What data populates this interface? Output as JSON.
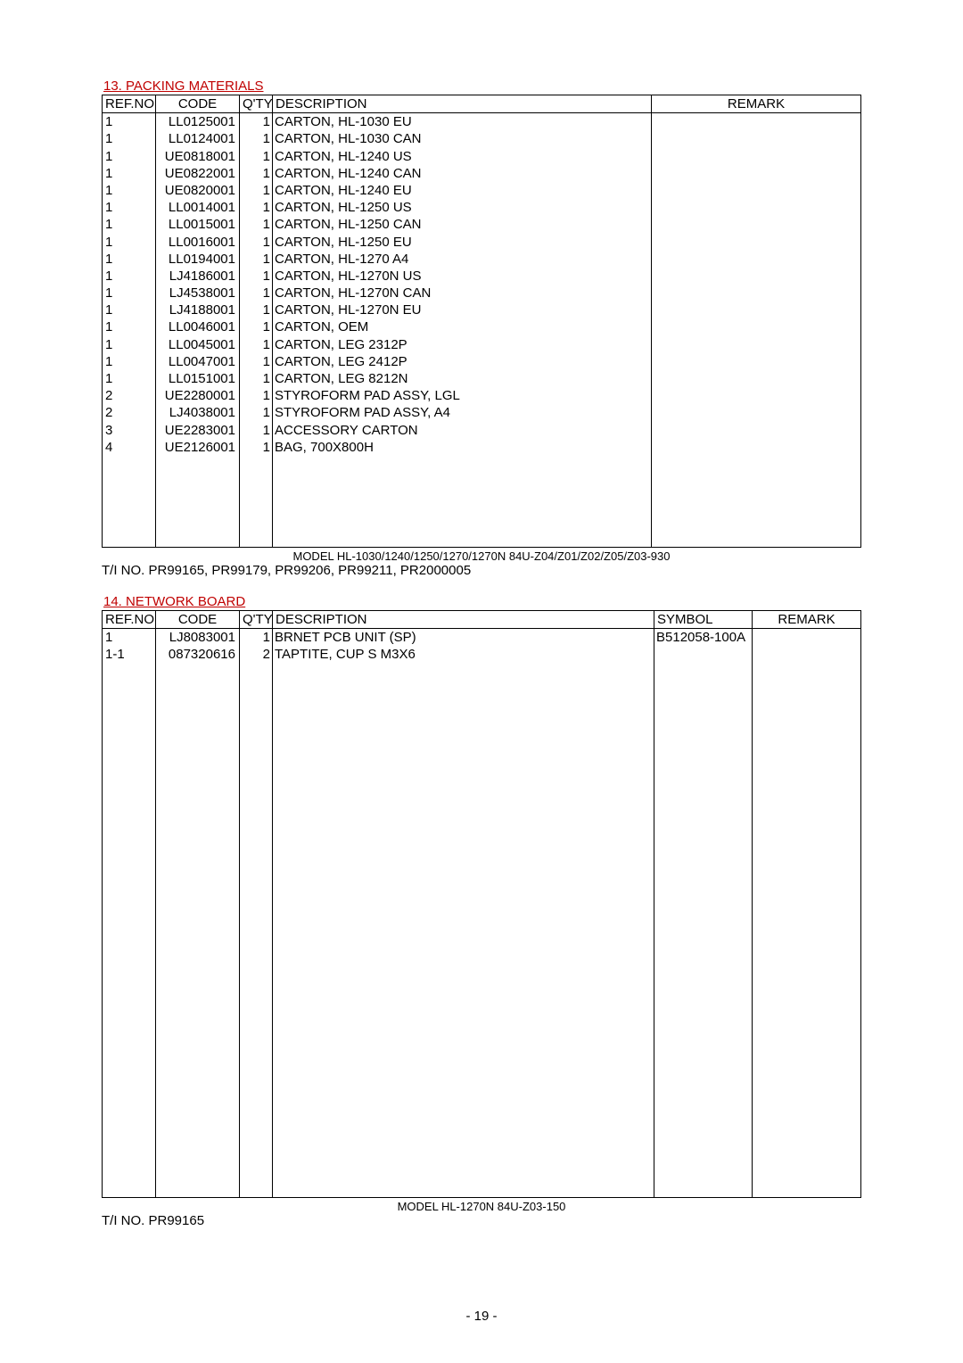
{
  "section1": {
    "title": "13. PACKING MATERIALS",
    "headers": {
      "ref": "REF.NO.",
      "code": "CODE",
      "qty": "Q'TY",
      "desc": "DESCRIPTION",
      "remark": "REMARK"
    },
    "rows": [
      {
        "ref": "1",
        "code": "LL0125001",
        "qty": "1",
        "desc": "CARTON, HL-1030 EU",
        "remark": ""
      },
      {
        "ref": "1",
        "code": "LL0124001",
        "qty": "1",
        "desc": "CARTON, HL-1030 CAN",
        "remark": ""
      },
      {
        "ref": "1",
        "code": "UE0818001",
        "qty": "1",
        "desc": "CARTON, HL-1240 US",
        "remark": ""
      },
      {
        "ref": "1",
        "code": "UE0822001",
        "qty": "1",
        "desc": "CARTON, HL-1240 CAN",
        "remark": ""
      },
      {
        "ref": "1",
        "code": "UE0820001",
        "qty": "1",
        "desc": "CARTON, HL-1240 EU",
        "remark": ""
      },
      {
        "ref": "1",
        "code": "LL0014001",
        "qty": "1",
        "desc": "CARTON, HL-1250 US",
        "remark": ""
      },
      {
        "ref": "1",
        "code": "LL0015001",
        "qty": "1",
        "desc": "CARTON, HL-1250 CAN",
        "remark": ""
      },
      {
        "ref": "1",
        "code": "LL0016001",
        "qty": "1",
        "desc": "CARTON, HL-1250 EU",
        "remark": ""
      },
      {
        "ref": "1",
        "code": "LL0194001",
        "qty": "1",
        "desc": "CARTON, HL-1270 A4",
        "remark": ""
      },
      {
        "ref": "1",
        "code": "LJ4186001",
        "qty": "1",
        "desc": "CARTON, HL-1270N US",
        "remark": ""
      },
      {
        "ref": "1",
        "code": "LJ4538001",
        "qty": "1",
        "desc": "CARTON, HL-1270N CAN",
        "remark": ""
      },
      {
        "ref": "1",
        "code": "LJ4188001",
        "qty": "1",
        "desc": "CARTON, HL-1270N EU",
        "remark": ""
      },
      {
        "ref": "1",
        "code": "LL0046001",
        "qty": "1",
        "desc": "CARTON, OEM",
        "remark": ""
      },
      {
        "ref": "1",
        "code": "LL0045001",
        "qty": "1",
        "desc": "CARTON, LEG 2312P",
        "remark": ""
      },
      {
        "ref": "1",
        "code": "LL0047001",
        "qty": "1",
        "desc": "CARTON, LEG 2412P",
        "remark": ""
      },
      {
        "ref": "1",
        "code": "LL0151001",
        "qty": "1",
        "desc": "CARTON, LEG 8212N",
        "remark": ""
      },
      {
        "ref": "2",
        "code": "UE2280001",
        "qty": "1",
        "desc": "STYROFORM PAD ASSY, LGL",
        "remark": ""
      },
      {
        "ref": "2",
        "code": "LJ4038001",
        "qty": "1",
        "desc": "STYROFORM PAD ASSY, A4",
        "remark": ""
      },
      {
        "ref": "3",
        "code": "UE2283001",
        "qty": "1",
        "desc": "ACCESSORY CARTON",
        "remark": ""
      },
      {
        "ref": "4",
        "code": "UE2126001",
        "qty": "1",
        "desc": "BAG, 700X800H",
        "remark": ""
      }
    ],
    "caption": "MODEL HL-1030/1240/1250/1270/1270N  84U-Z04/Z01/Z02/Z05/Z03-930",
    "ti": "T/I NO. PR99165, PR99179, PR99206, PR99211, PR2000005"
  },
  "section2": {
    "title": "14. NETWORK BOARD",
    "headers": {
      "ref": "REF.NO.",
      "code": "CODE",
      "qty": "Q'TY",
      "desc": "DESCRIPTION",
      "symbol": "SYMBOL",
      "remark": "REMARK"
    },
    "rows": [
      {
        "ref": "1",
        "code": "LJ8083001",
        "qty": "1",
        "desc": "BRNET PCB UNIT (SP)",
        "symbol": "B512058-100A",
        "remark": ""
      },
      {
        "ref": "1-1",
        "code": "087320616",
        "qty": "2",
        "desc": "TAPTITE, CUP S M3X6",
        "symbol": "",
        "remark": ""
      }
    ],
    "caption": "MODEL HL-1270N 84U-Z03-150",
    "ti": "T/I NO. PR99165"
  },
  "pagenum": "- 19 -"
}
